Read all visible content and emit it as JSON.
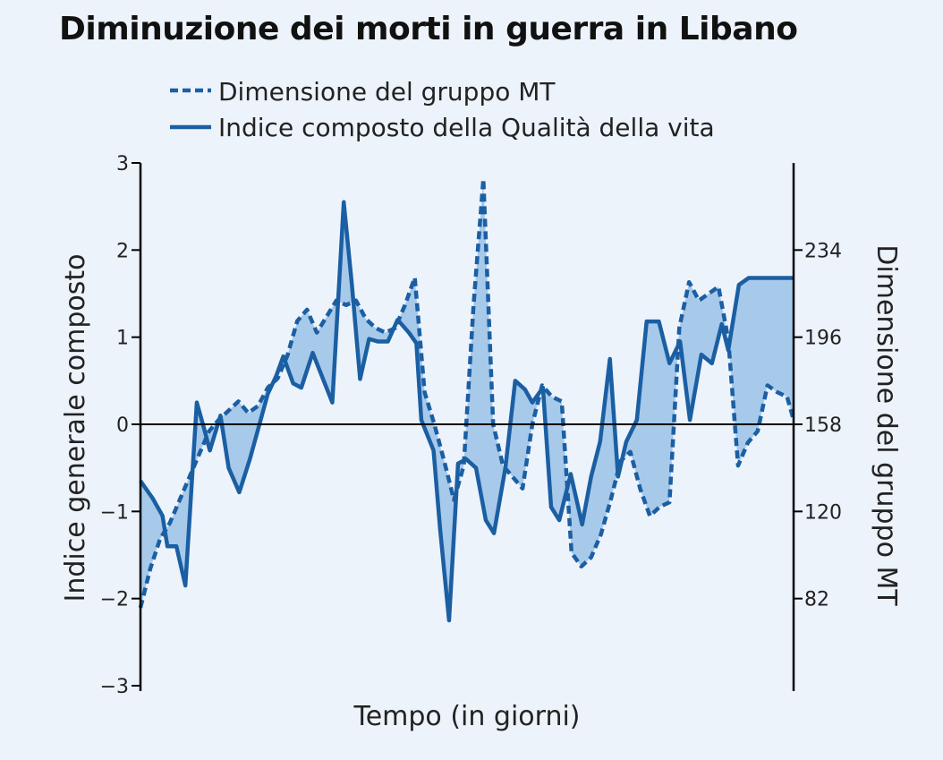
{
  "chart_data": {
    "type": "line",
    "title": "Diminuzione dei morti in guerra in Libano",
    "xlabel": "Tempo (in giorni)",
    "ylabel": "Indice generale composto",
    "y2label": "Dimensione del gruppo MT",
    "ylim": [
      -3,
      3
    ],
    "y2lim": [
      44,
      272
    ],
    "yticks": [
      "3",
      "2",
      "1",
      "0",
      "−1",
      "−2",
      "−3"
    ],
    "y2ticks": [
      "234",
      "196",
      "158",
      "120",
      "82"
    ],
    "fill_between": true,
    "colors": {
      "line": "#1b5fa3",
      "fill": "#a7c9ea"
    },
    "legend": [
      {
        "label": "Dimensione del gruppo MT",
        "style": "dashed"
      },
      {
        "label": "Indice composto della Qualità della vita",
        "style": "solid"
      }
    ],
    "series": [
      {
        "name": "Indice composto della Qualità della vita",
        "axis": "left",
        "style": "solid",
        "x": [
          0,
          1.5,
          2.7,
          3.3,
          4.4,
          5.5,
          6.9,
          7.8,
          8.5,
          9.8,
          10.8,
          12.1,
          13.4,
          15.6,
          16.6,
          17.5,
          18.7,
          19.7,
          21.1,
          23.5,
          24.9,
          25.9,
          26.9,
          28,
          29.1,
          30.3,
          31.5,
          32.9,
          33.8,
          34.4,
          35.9,
          36.7,
          37.8,
          38.9,
          39.9,
          41.1,
          42.3,
          43.3,
          44.7,
          45.9,
          47.1,
          48,
          49.3,
          50.3,
          51.3,
          52.7,
          54.1,
          55.2,
          56.3,
          57.5,
          58.5,
          59.5,
          60.8,
          62,
          63.5,
          64.8,
          66.1,
          67.3,
          68.7,
          70,
          71.2,
          72,
          73.3,
          74.5,
          75.9,
          76.9,
          78.3,
          80
        ],
        "y": [
          -0.65,
          -0.85,
          -1.05,
          -1.4,
          -1.4,
          -1.85,
          0.25,
          -0.05,
          -0.3,
          0.1,
          -0.5,
          -0.78,
          -0.4,
          0.35,
          0.55,
          0.78,
          0.47,
          0.42,
          0.82,
          0.25,
          2.55,
          1.6,
          0.52,
          0.98,
          0.95,
          0.95,
          1.2,
          1.05,
          0.93,
          0.05,
          -0.3,
          -1.2,
          -2.25,
          -0.45,
          -0.4,
          -0.5,
          -1.1,
          -1.25,
          -0.5,
          0.5,
          0.4,
          0.25,
          0.42,
          -0.95,
          -1.1,
          -0.57,
          -1.15,
          -0.6,
          -0.2,
          0.75,
          -0.6,
          -0.2,
          0.05,
          1.18,
          1.18,
          0.7,
          0.95,
          0.05,
          0.8,
          0.7,
          1.15,
          0.85,
          1.6,
          1.68,
          1.68,
          1.68,
          1.68,
          1.68
        ]
      },
      {
        "name": "Dimensione del gruppo MT",
        "axis": "right",
        "style": "dashed",
        "x": [
          0,
          1.2,
          2.4,
          3.6,
          4.8,
          6,
          7.2,
          8.4,
          9.6,
          10.8,
          12,
          13.2,
          14.4,
          15.6,
          16.8,
          18,
          19.2,
          20.4,
          21.6,
          22.8,
          24,
          25.2,
          26.4,
          27.6,
          28.8,
          30,
          31.2,
          32.4,
          33.6,
          34.8,
          36,
          37.2,
          38.4,
          39.6,
          40.8,
          42,
          43.2,
          44.4,
          45.6,
          46.8,
          48,
          49.2,
          50.4,
          51.6,
          52.8,
          54,
          55.2,
          56.4,
          57.6,
          58.8,
          60,
          61.2,
          62.4,
          63.6,
          64.8,
          66,
          67.2,
          68.4,
          69.6,
          70.8,
          72,
          73.2,
          74.4,
          75.6,
          76.8,
          78,
          79.2,
          80
        ],
        "y": [
          78,
          95,
          108,
          115,
          125,
          135,
          145,
          155,
          160,
          164,
          168,
          163,
          166,
          174,
          178,
          188,
          203,
          208,
          198,
          205,
          212,
          210,
          212,
          204,
          200,
          198,
          200,
          210,
          222,
          172,
          158,
          142,
          125,
          140,
          210,
          265,
          158,
          140,
          135,
          130,
          158,
          175,
          170,
          168,
          102,
          96,
          100,
          110,
          125,
          142,
          146,
          130,
          118,
          122,
          124,
          200,
          220,
          212,
          215,
          218,
          195,
          140,
          150,
          155,
          175,
          172,
          170,
          160
        ],
        "note": "right-axis values (Dimensione del gruppo MT)"
      }
    ]
  }
}
